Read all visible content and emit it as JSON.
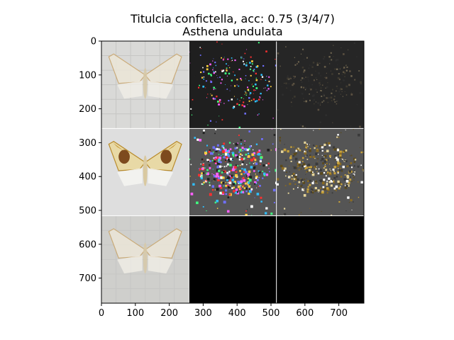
{
  "chart_data": {
    "type": "image_grid",
    "title_line1": "Titulcia confictella, acc: 0.75 (3/4/7)",
    "title_line2": "Asthena undulata",
    "xlim": [
      0,
      774
    ],
    "ylim": [
      774,
      0
    ],
    "x_ticks": [
      0,
      100,
      200,
      300,
      400,
      500,
      600,
      700
    ],
    "y_ticks": [
      0,
      100,
      200,
      300,
      400,
      500,
      600,
      700
    ],
    "grid": {
      "rows": 3,
      "cols": 3,
      "cells": [
        {
          "row": 0,
          "col": 0,
          "content": "moth-photo-faded",
          "bg": "#d9d9d7"
        },
        {
          "row": 0,
          "col": 1,
          "content": "saliency-color-noise",
          "bg": "#1f1f1f"
        },
        {
          "row": 0,
          "col": 2,
          "content": "saliency-dim-texture",
          "bg": "#262626"
        },
        {
          "row": 1,
          "col": 0,
          "content": "moth-photo",
          "bg": "#dedede"
        },
        {
          "row": 1,
          "col": 1,
          "content": "saliency-color-noise",
          "bg": "#555555"
        },
        {
          "row": 1,
          "col": 2,
          "content": "saliency-texture",
          "bg": "#555555"
        },
        {
          "row": 2,
          "col": 0,
          "content": "moth-photo-faded",
          "bg": "#cfcfcc"
        },
        {
          "row": 2,
          "col": 1,
          "content": "empty",
          "bg": "#000000"
        },
        {
          "row": 2,
          "col": 2,
          "content": "empty",
          "bg": "#000000"
        }
      ]
    }
  }
}
